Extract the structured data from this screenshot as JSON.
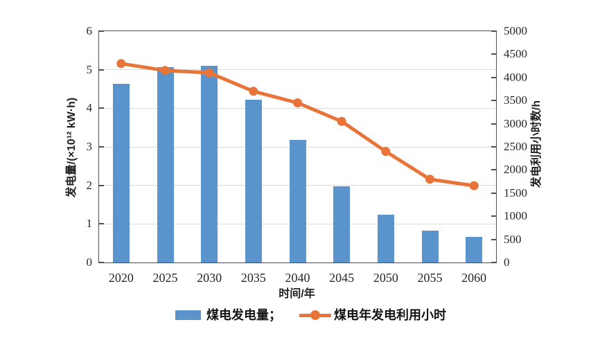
{
  "chart_data": {
    "type": "combo-bar-line",
    "categories": [
      "2020",
      "2025",
      "2030",
      "2035",
      "2040",
      "2045",
      "2050",
      "2055",
      "2060"
    ],
    "series": [
      {
        "name": "煤电发电量",
        "type": "bar",
        "axis": "left",
        "unit": "×10¹² kW·h",
        "values": [
          4.63,
          5.06,
          5.1,
          4.23,
          3.18,
          1.98,
          1.24,
          0.82,
          0.66
        ]
      },
      {
        "name": "煤电年发电利用小时",
        "type": "line",
        "axis": "right",
        "unit": "h",
        "values": [
          4300,
          4150,
          4100,
          3700,
          3450,
          3050,
          2400,
          1800,
          1660
        ]
      }
    ],
    "title": "",
    "xlabel": "时间/年",
    "ylabel_left": "发电量/(×10¹² kW·h)",
    "ylabel_right": "发电利用小时数/h",
    "left_axis": {
      "min": 0,
      "max": 6,
      "ticks": [
        0,
        1,
        2,
        3,
        4,
        5,
        6
      ]
    },
    "right_axis": {
      "min": 0,
      "max": 5000,
      "ticks": [
        0,
        500,
        1000,
        1500,
        2000,
        2500,
        3000,
        3500,
        4000,
        4500,
        5000
      ]
    },
    "gridlines_at_left_values": [
      1,
      2,
      3,
      4,
      5
    ],
    "legend": {
      "position": "bottom",
      "bar_label": "煤电发电量；",
      "line_label": "煤电年发电利用小时"
    }
  },
  "colors": {
    "bar": "#5b93cc",
    "line": "#e8743a",
    "grid": "#d9d9d9",
    "axis": "#4f4f4f",
    "text": "#262626"
  }
}
